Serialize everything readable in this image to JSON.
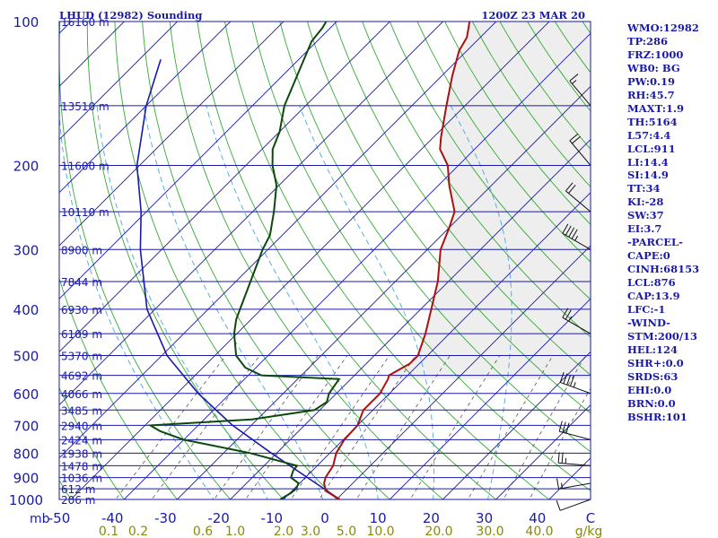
{
  "chart_data": {
    "type": "skew-t",
    "title": "LHUD (12982) Sounding",
    "valid_time": "1200Z 23 MAR 20",
    "pressure_axis": {
      "label": "mb",
      "range": [
        1000,
        100
      ],
      "scale": "log",
      "ticks": [
        100,
        200,
        300,
        400,
        500,
        600,
        700,
        800,
        900,
        1000
      ]
    },
    "temperature_axis": {
      "range": [
        -50,
        50
      ],
      "ticks": [
        -50,
        -40,
        -30,
        -20,
        -10,
        0,
        10,
        20,
        30,
        40,
        50
      ]
    },
    "mixing_ratio_axis": {
      "unit": "g/kg",
      "ticks": [
        "0.1",
        "0.2",
        "0.6",
        "1.0",
        "2.0",
        "3.0",
        "5.0",
        "10.0",
        "20.0",
        "30.0",
        "40.0"
      ]
    },
    "height_labels": [
      {
        "p": 100,
        "label": "16160 m"
      },
      {
        "p": 150,
        "label": "13510 m"
      },
      {
        "p": 200,
        "label": "11600 m"
      },
      {
        "p": 250,
        "label": "10110 m"
      },
      {
        "p": 300,
        "label": "8900 m"
      },
      {
        "p": 350,
        "label": "7844 m"
      },
      {
        "p": 400,
        "label": "6930 m"
      },
      {
        "p": 450,
        "label": "6109 m"
      },
      {
        "p": 500,
        "label": "5370 m"
      },
      {
        "p": 550,
        "label": "4692 m"
      },
      {
        "p": 600,
        "label": "4066 m"
      },
      {
        "p": 650,
        "label": "3485 m"
      },
      {
        "p": 700,
        "label": "2940 m"
      },
      {
        "p": 750,
        "label": "2424 m"
      },
      {
        "p": 800,
        "label": "1938 m"
      },
      {
        "p": 850,
        "label": "1478 m"
      },
      {
        "p": 900,
        "label": "1036 m"
      },
      {
        "p": 950,
        "label": "612 m"
      },
      {
        "p": 1000,
        "label": "206 m"
      }
    ],
    "temperature": [
      [
        1000,
        0.6
      ],
      [
        960,
        -3.6
      ],
      [
        925,
        -5.4
      ],
      [
        900,
        -6.2
      ],
      [
        850,
        -7.0
      ],
      [
        800,
        -8.8
      ],
      [
        750,
        -9.8
      ],
      [
        700,
        -10.0
      ],
      [
        650,
        -11.8
      ],
      [
        600,
        -11.8
      ],
      [
        560,
        -13.0
      ],
      [
        550,
        -13.5
      ],
      [
        520,
        -11.8
      ],
      [
        500,
        -11.8
      ],
      [
        450,
        -14.5
      ],
      [
        400,
        -18.0
      ],
      [
        350,
        -22.0
      ],
      [
        300,
        -27.5
      ],
      [
        270,
        -30.0
      ],
      [
        250,
        -32.0
      ],
      [
        220,
        -38.0
      ],
      [
        200,
        -42.0
      ],
      [
        185,
        -46.5
      ],
      [
        175,
        -48.5
      ],
      [
        150,
        -53.5
      ],
      [
        130,
        -58.0
      ],
      [
        115,
        -61.5
      ],
      [
        108,
        -62.5
      ],
      [
        100,
        -65.0
      ]
    ],
    "dewpoint": [
      [
        1000,
        -10.6
      ],
      [
        970,
        -9.8
      ],
      [
        950,
        -9.6
      ],
      [
        925,
        -10.2
      ],
      [
        900,
        -12.7
      ],
      [
        870,
        -13.6
      ],
      [
        850,
        -13.8
      ],
      [
        800,
        -25.0
      ],
      [
        750,
        -40.0
      ],
      [
        720,
        -46.0
      ],
      [
        700,
        -49.0
      ],
      [
        680,
        -31.0
      ],
      [
        650,
        -21.0
      ],
      [
        625,
        -20.2
      ],
      [
        600,
        -21.4
      ],
      [
        560,
        -22.2
      ],
      [
        550,
        -37.5
      ],
      [
        530,
        -42.0
      ],
      [
        500,
        -46.0
      ],
      [
        450,
        -50.5
      ],
      [
        420,
        -52.8
      ],
      [
        400,
        -54.0
      ],
      [
        300,
        -61.0
      ],
      [
        280,
        -62.3
      ],
      [
        250,
        -66.0
      ],
      [
        220,
        -70.5
      ],
      [
        200,
        -75.0
      ],
      [
        185,
        -78.0
      ],
      [
        170,
        -80.0
      ],
      [
        150,
        -84.0
      ],
      [
        110,
        -91.0
      ],
      [
        103,
        -91.5
      ],
      [
        100,
        -92.0
      ]
    ],
    "parcel_path": [
      [
        1000,
        0.6
      ],
      [
        900,
        -9.6
      ],
      [
        800,
        -21.0
      ],
      [
        700,
        -33.5
      ],
      [
        600,
        -46.0
      ],
      [
        500,
        -59.0
      ],
      [
        400,
        -71.5
      ],
      [
        300,
        -84.0
      ],
      [
        250,
        -91.0
      ],
      [
        200,
        -100.5
      ],
      [
        150,
        -110.0
      ],
      [
        120,
        -116.0
      ]
    ],
    "winds": [
      {
        "p": 1000,
        "dir": 250,
        "spd": 10
      },
      {
        "p": 925,
        "dir": 260,
        "spd": 15
      },
      {
        "p": 850,
        "dir": 275,
        "spd": 25
      },
      {
        "p": 750,
        "dir": 285,
        "spd": 30
      },
      {
        "p": 600,
        "dir": 290,
        "spd": 45
      },
      {
        "p": 450,
        "dir": 300,
        "spd": 25
      },
      {
        "p": 300,
        "dir": 300,
        "spd": 45
      },
      {
        "p": 250,
        "dir": 310,
        "spd": 20
      },
      {
        "p": 200,
        "dir": 320,
        "spd": 20
      },
      {
        "p": 150,
        "dir": 320,
        "spd": 15
      }
    ],
    "grid": true,
    "legend": "none"
  },
  "indices": [
    "WMO:12982",
    "TP:286",
    "FRZ:1000",
    "WB0: BG",
    "PW:0.19",
    "RH:45.7",
    "MAXT:1.9",
    "TH:5164",
    "L57:4.4",
    "LCL:911",
    "LI:14.4",
    "SI:14.9",
    "TT:34",
    "KI:-28",
    "SW:37",
    "EI:3.7",
    "-PARCEL-",
    "CAPE:0",
    "CINH:68153",
    "LCL:876",
    "CAP:13.9",
    "LFC:-1",
    "-WIND-",
    "STM:200/13",
    "HEL:124",
    "SHR+:0.0",
    "SRDS:63",
    "EHI:0.0",
    "BRN:0.0",
    "BSHR:101"
  ],
  "colors": {
    "isobar": "#1a1aa8",
    "isotherm": "#1a1aa8",
    "dry_adiabat": "#33aa33",
    "moist_adiabat": "#5aaee0",
    "mixing_ratio": "#555555",
    "temperature": "#aa1111",
    "dewpoint": "#0b4a0b",
    "parcel": "#1a1aa8",
    "cin_shading": "#eeeeee",
    "labels": "#1a1aa8",
    "mixing_labels": "#8a8a00"
  }
}
